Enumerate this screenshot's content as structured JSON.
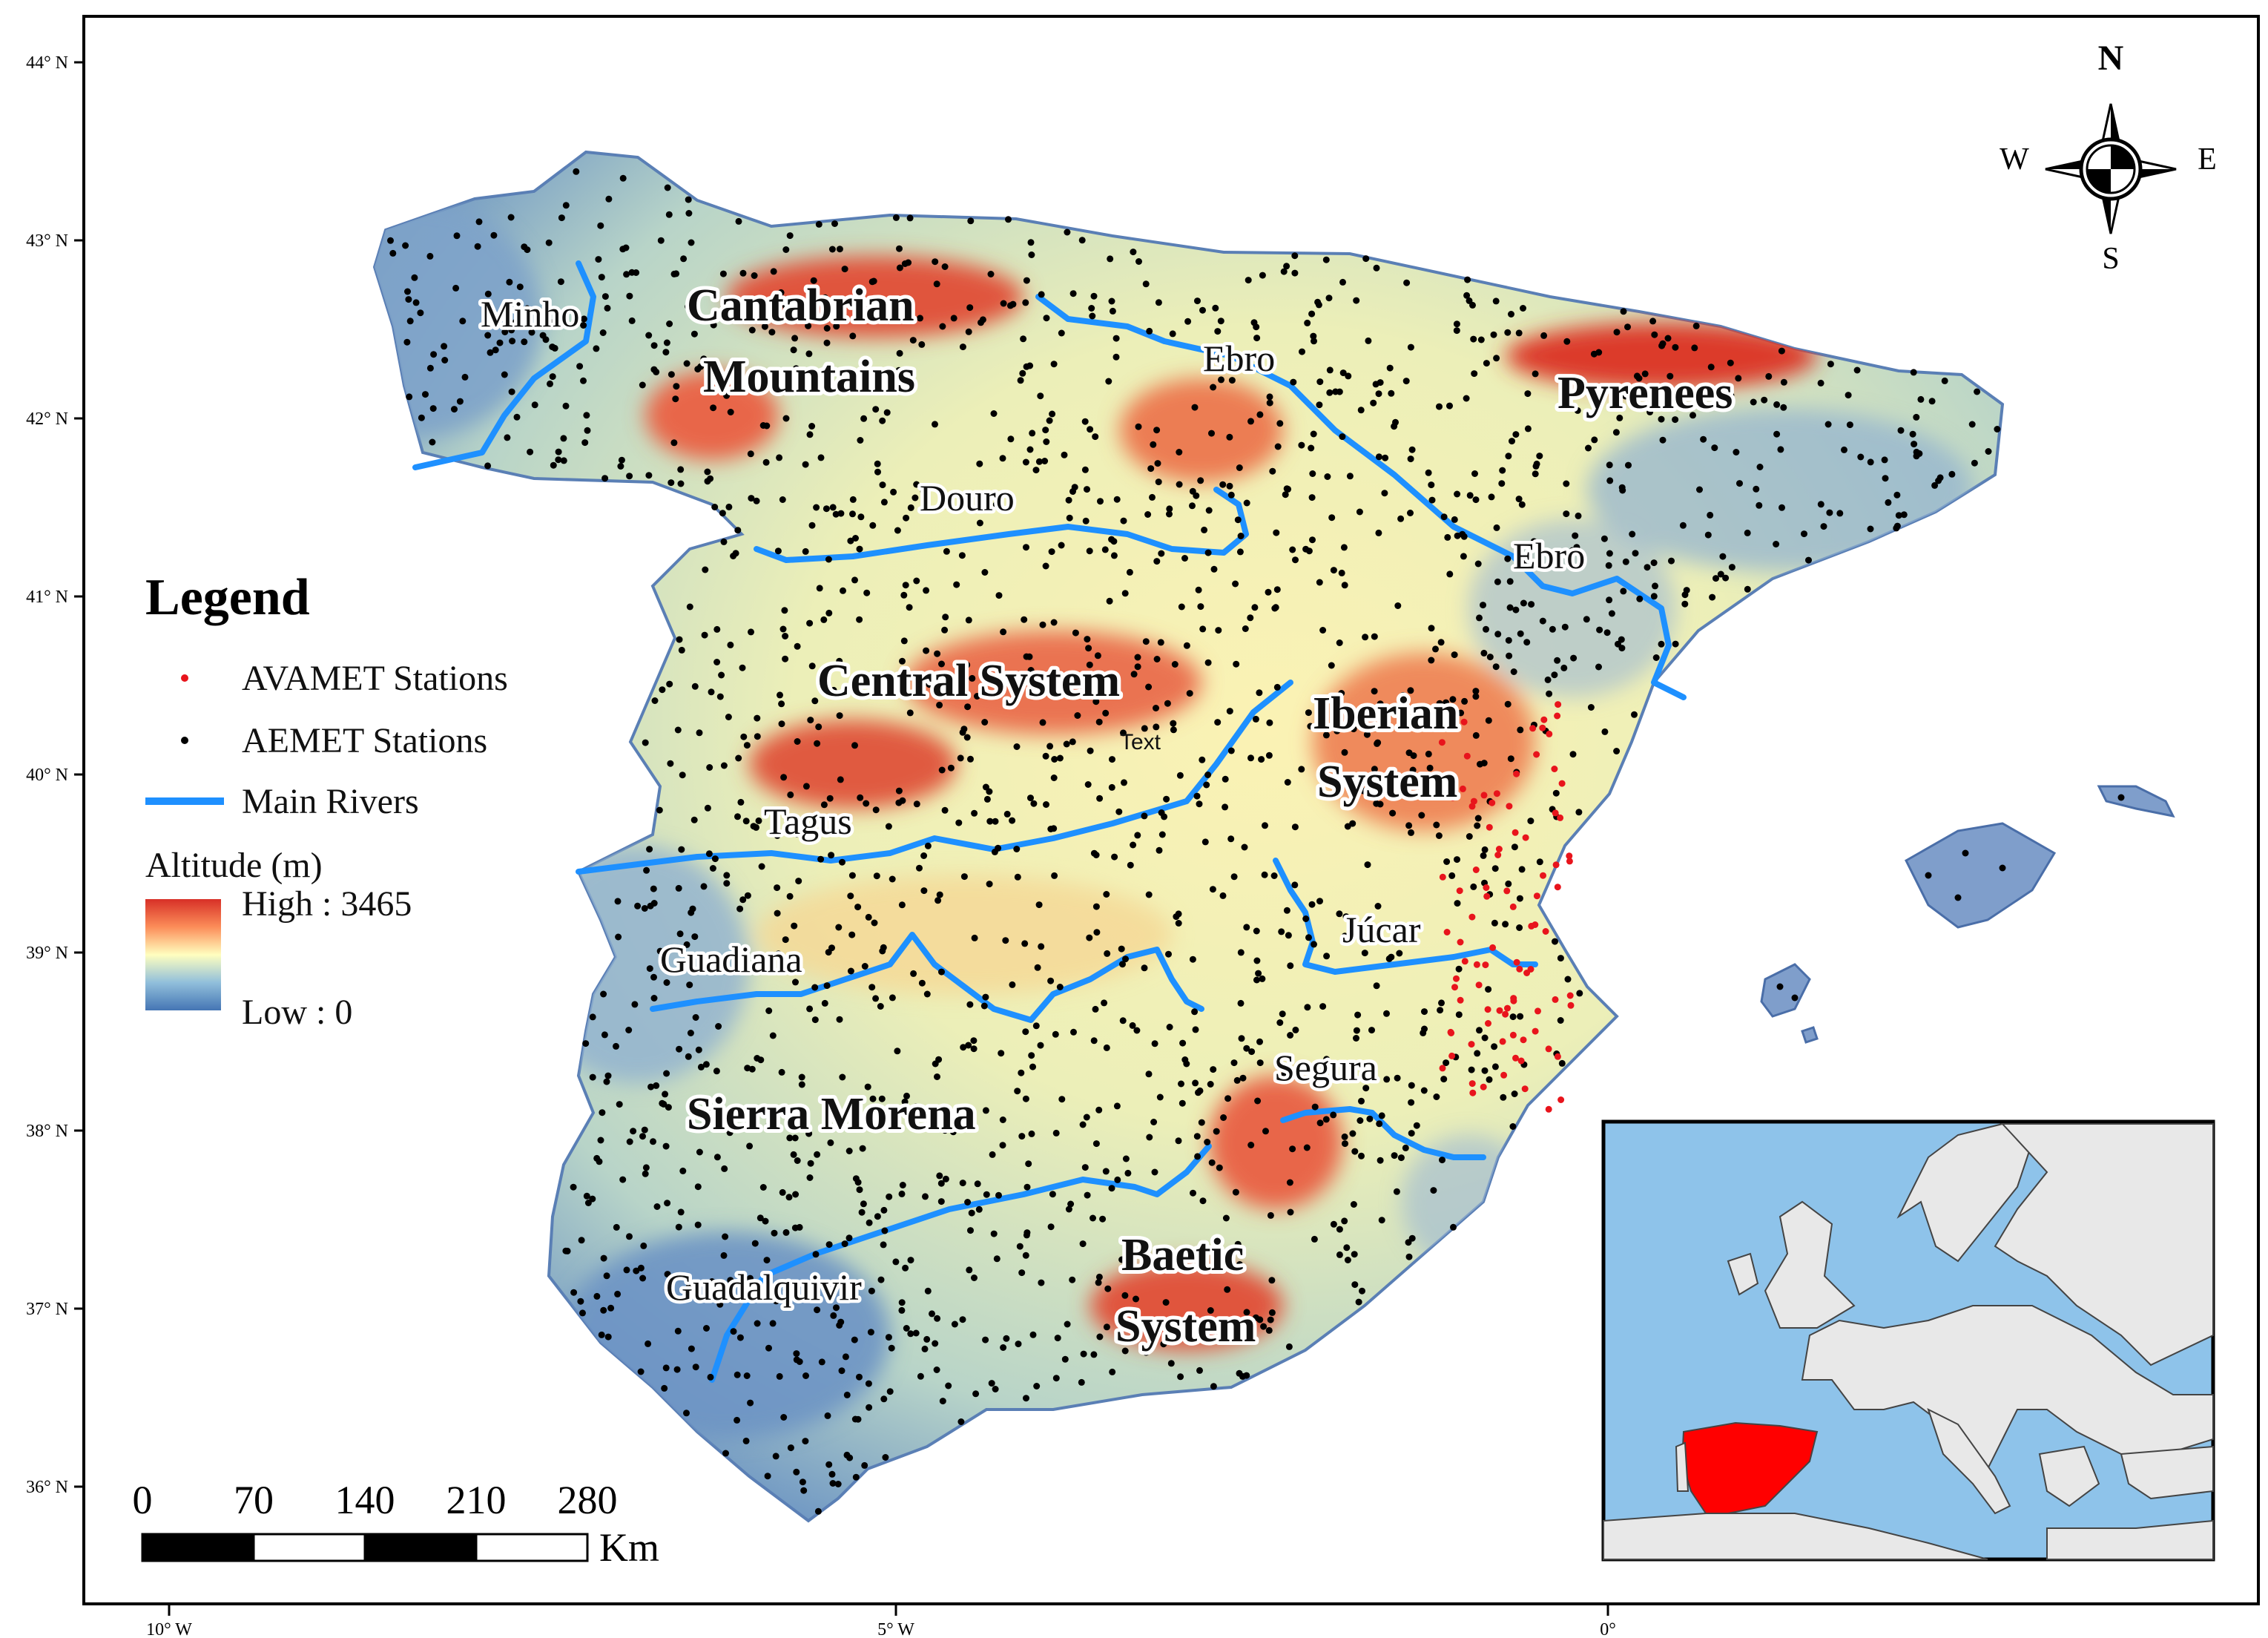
{
  "colors": {
    "river": "#1e90ff",
    "avamet": "#e8141c",
    "aemet": "#000000",
    "altitude_high": "#d73027",
    "altitude_mid": "#ffffbf",
    "altitude_low": "#4575b4",
    "inset_sea": "#8ec3ea",
    "inset_land": "#e8e8e8",
    "inset_spain": "#ff0000"
  },
  "graticule": {
    "lat_labels": [
      "44° N",
      "43° N",
      "42° N",
      "41° N",
      "40° N",
      "39° N",
      "38° N",
      "37° N",
      "36° N"
    ],
    "lon_labels": [
      "10° W",
      "5° W",
      "0°"
    ]
  },
  "north_arrow": {
    "n": "N",
    "s": "S",
    "e": "E",
    "w": "W"
  },
  "regions": {
    "cantabrian_1": "Cantabrian",
    "cantabrian_2": "Mountains",
    "pyrenees": "Pyrenees",
    "central_system": "Central System",
    "iberian_1": "Iberian",
    "iberian_2": "System",
    "sierra_morena": "Sierra Morena",
    "baetic_1": "Baetic",
    "baetic_2": "System"
  },
  "rivers": {
    "minho": "Minho",
    "ebro_1": "Ebro",
    "ebro_2": "Ebro",
    "douro": "Douro",
    "tagus": "Tagus",
    "guadiana": "Guadiana",
    "jucar": "Júcar",
    "segura": "Segura",
    "guadalquivir": "Guadalquivir"
  },
  "stray_text": "Text",
  "legend": {
    "title": "Legend",
    "avamet": "AVAMET Stations",
    "aemet": "AEMET Stations",
    "rivers": "Main Rivers",
    "altitude_title": "Altitude (m)",
    "high": "High : 3465",
    "low": "Low : 0"
  },
  "scale_bar": {
    "ticks": [
      "0",
      "70",
      "140",
      "210",
      "280"
    ],
    "unit": "Km"
  }
}
